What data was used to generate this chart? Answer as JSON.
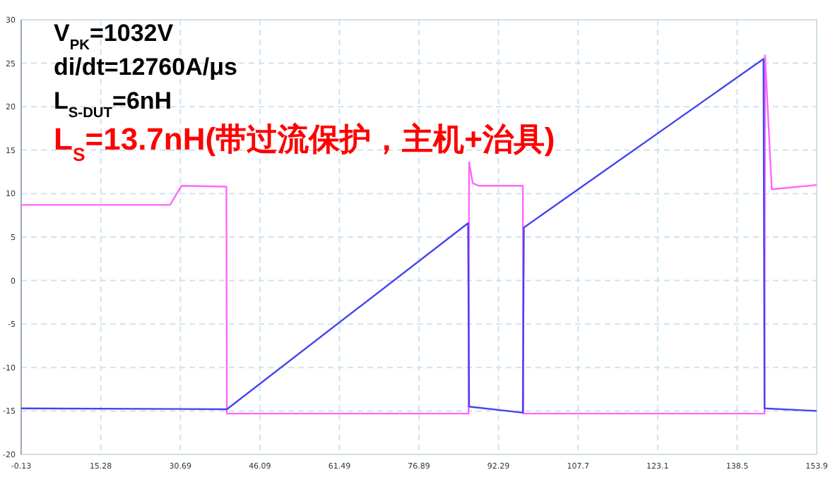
{
  "chart_data": {
    "type": "line",
    "xlim": [
      -0.13,
      153.9
    ],
    "ylim": [
      -20,
      30
    ],
    "xticks": [
      -0.13,
      15.28,
      30.69,
      46.09,
      61.49,
      76.89,
      92.29,
      107.7,
      123.1,
      138.5,
      153.9
    ],
    "yticks": [
      -20,
      -15,
      -10,
      -5,
      0,
      5,
      10,
      15,
      20,
      25,
      30
    ],
    "grid": true,
    "series": [
      {
        "color": "#ff66ff",
        "x": [
          -0.13,
          28.7,
          30.9,
          39.6,
          39.7,
          86.5,
          86.6,
          87.3,
          88.5,
          97.0,
          97.1,
          143.8,
          143.9,
          145.2,
          153.9
        ],
        "values": [
          8.7,
          8.7,
          10.9,
          10.8,
          -15.3,
          -15.3,
          13.6,
          11.2,
          10.9,
          10.9,
          -15.3,
          -15.3,
          25.9,
          10.5,
          11.0
        ]
      },
      {
        "color": "#4444ee",
        "x": [
          -0.13,
          39.7,
          86.4,
          86.6,
          97.0,
          97.2,
          143.6,
          143.8,
          153.9
        ],
        "values": [
          -14.7,
          -14.8,
          6.6,
          -14.5,
          -15.2,
          6.1,
          25.5,
          -14.7,
          -15.0
        ]
      }
    ],
    "annotations": [
      "V$_{PK}$=1032V",
      "di/dt=12760A/μs",
      "L$_{S-DUT}$=6nH",
      "L$_{S}$=13.7nH(带过流保护，主机+治具)"
    ]
  }
}
